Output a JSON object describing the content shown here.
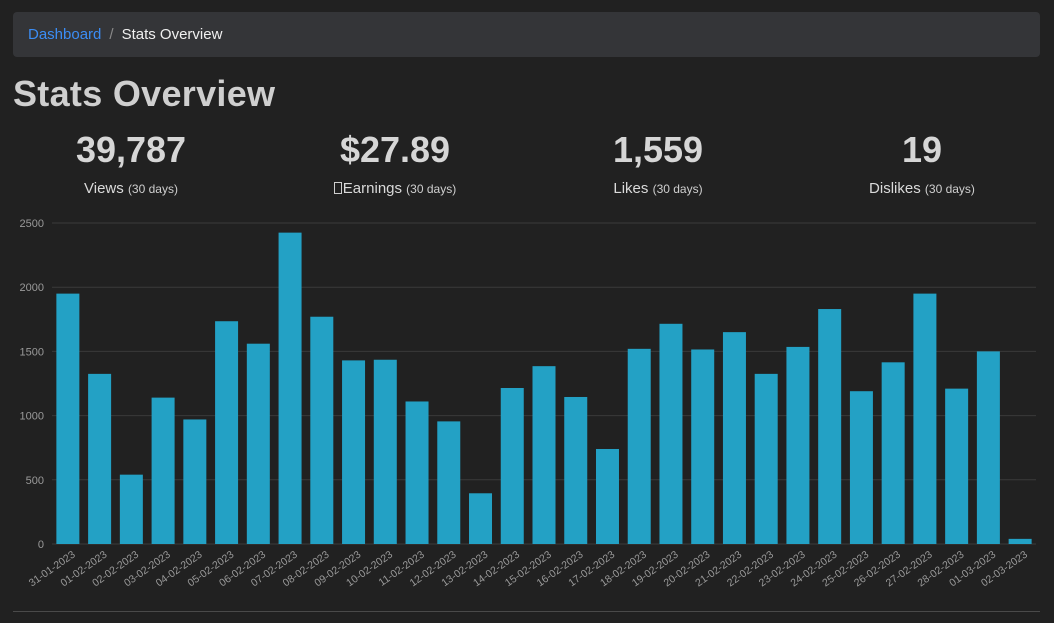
{
  "breadcrumb": {
    "home": "Dashboard",
    "separator": "/",
    "current": "Stats Overview"
  },
  "page": {
    "title": "Stats Overview"
  },
  "stats": [
    {
      "value": "39,787",
      "label": "Views",
      "period": "(30 days)",
      "icon": ""
    },
    {
      "value": "$27.89",
      "label": "Earnings",
      "period": "(30 days)",
      "icon": "unknown-glyph-icon"
    },
    {
      "value": "1,559",
      "label": "Likes",
      "period": "(30 days)",
      "icon": ""
    },
    {
      "value": "19",
      "label": "Dislikes",
      "period": "(30 days)",
      "icon": ""
    }
  ],
  "colors": {
    "bar": "#23a1c5",
    "grid": "#3a3a3a",
    "tick": "#9a9a9a",
    "link": "#3b8df5"
  },
  "chart_data": {
    "type": "bar",
    "title": "",
    "xlabel": "",
    "ylabel": "",
    "ylim": [
      0,
      2500
    ],
    "yticks": [
      0,
      500,
      1000,
      1500,
      2000,
      2500
    ],
    "grid": true,
    "categories": [
      "31-01-2023",
      "01-02-2023",
      "02-02-2023",
      "03-02-2023",
      "04-02-2023",
      "05-02-2023",
      "06-02-2023",
      "07-02-2023",
      "08-02-2023",
      "09-02-2023",
      "10-02-2023",
      "11-02-2023",
      "12-02-2023",
      "13-02-2023",
      "14-02-2023",
      "15-02-2023",
      "16-02-2023",
      "17-02-2023",
      "18-02-2023",
      "19-02-2023",
      "20-02-2023",
      "21-02-2023",
      "22-02-2023",
      "23-02-2023",
      "24-02-2023",
      "25-02-2023",
      "26-02-2023",
      "27-02-2023",
      "28-02-2023",
      "01-03-2023",
      "02-03-2023"
    ],
    "values": [
      1950,
      1325,
      540,
      1140,
      970,
      1735,
      1560,
      2425,
      1770,
      1430,
      1435,
      1110,
      955,
      395,
      1215,
      1385,
      1145,
      740,
      1520,
      1715,
      1515,
      1650,
      1325,
      1535,
      1830,
      1190,
      1415,
      1950,
      1210,
      1500,
      40
    ]
  }
}
